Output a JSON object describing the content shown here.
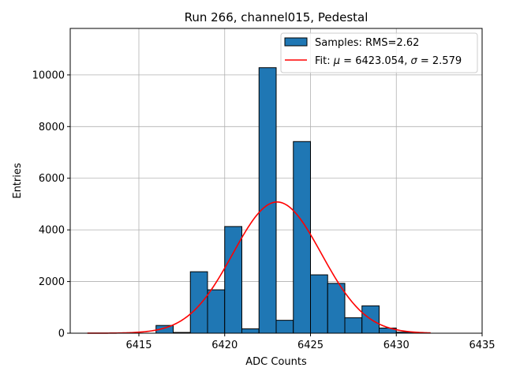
{
  "chart_data": {
    "type": "bar",
    "title": "Run 266, channel015, Pedestal",
    "xlabel": "ADC Counts",
    "ylabel": "Entries",
    "xlim": [
      6411,
      6435
    ],
    "ylim": [
      0,
      11800
    ],
    "xticks": [
      6415,
      6420,
      6425,
      6430,
      6435
    ],
    "yticks": [
      0,
      2000,
      4000,
      6000,
      8000,
      10000
    ],
    "grid": true,
    "bin_width": 1,
    "bins": [
      {
        "start": 6416,
        "count": 300
      },
      {
        "start": 6417,
        "count": 30
      },
      {
        "start": 6418,
        "count": 2380
      },
      {
        "start": 6419,
        "count": 1680
      },
      {
        "start": 6420,
        "count": 4130
      },
      {
        "start": 6421,
        "count": 170
      },
      {
        "start": 6422,
        "count": 10280
      },
      {
        "start": 6423,
        "count": 500
      },
      {
        "start": 6424,
        "count": 7420
      },
      {
        "start": 6425,
        "count": 2260
      },
      {
        "start": 6426,
        "count": 1930
      },
      {
        "start": 6427,
        "count": 600
      },
      {
        "start": 6428,
        "count": 1060
      },
      {
        "start": 6429,
        "count": 200
      },
      {
        "start": 6430,
        "count": 40
      }
    ],
    "fit": {
      "mu": 6423.054,
      "sigma": 2.579,
      "amplitude": 5080,
      "x_range": [
        6412,
        6432
      ]
    },
    "legend": {
      "position": "top-right",
      "samples_label": "Samples: RMS=2.62",
      "fit_label_prefix": "Fit: ",
      "fit_mu_symbol": "μ",
      "fit_mu_text": " = 6423.054, ",
      "fit_sigma_symbol": "σ",
      "fit_sigma_text": " = 2.579"
    },
    "colors": {
      "bar_fill": "#1f77b4",
      "bar_edge": "#000000",
      "fit_line": "#ff0000",
      "grid": "#b0b0b0"
    }
  }
}
